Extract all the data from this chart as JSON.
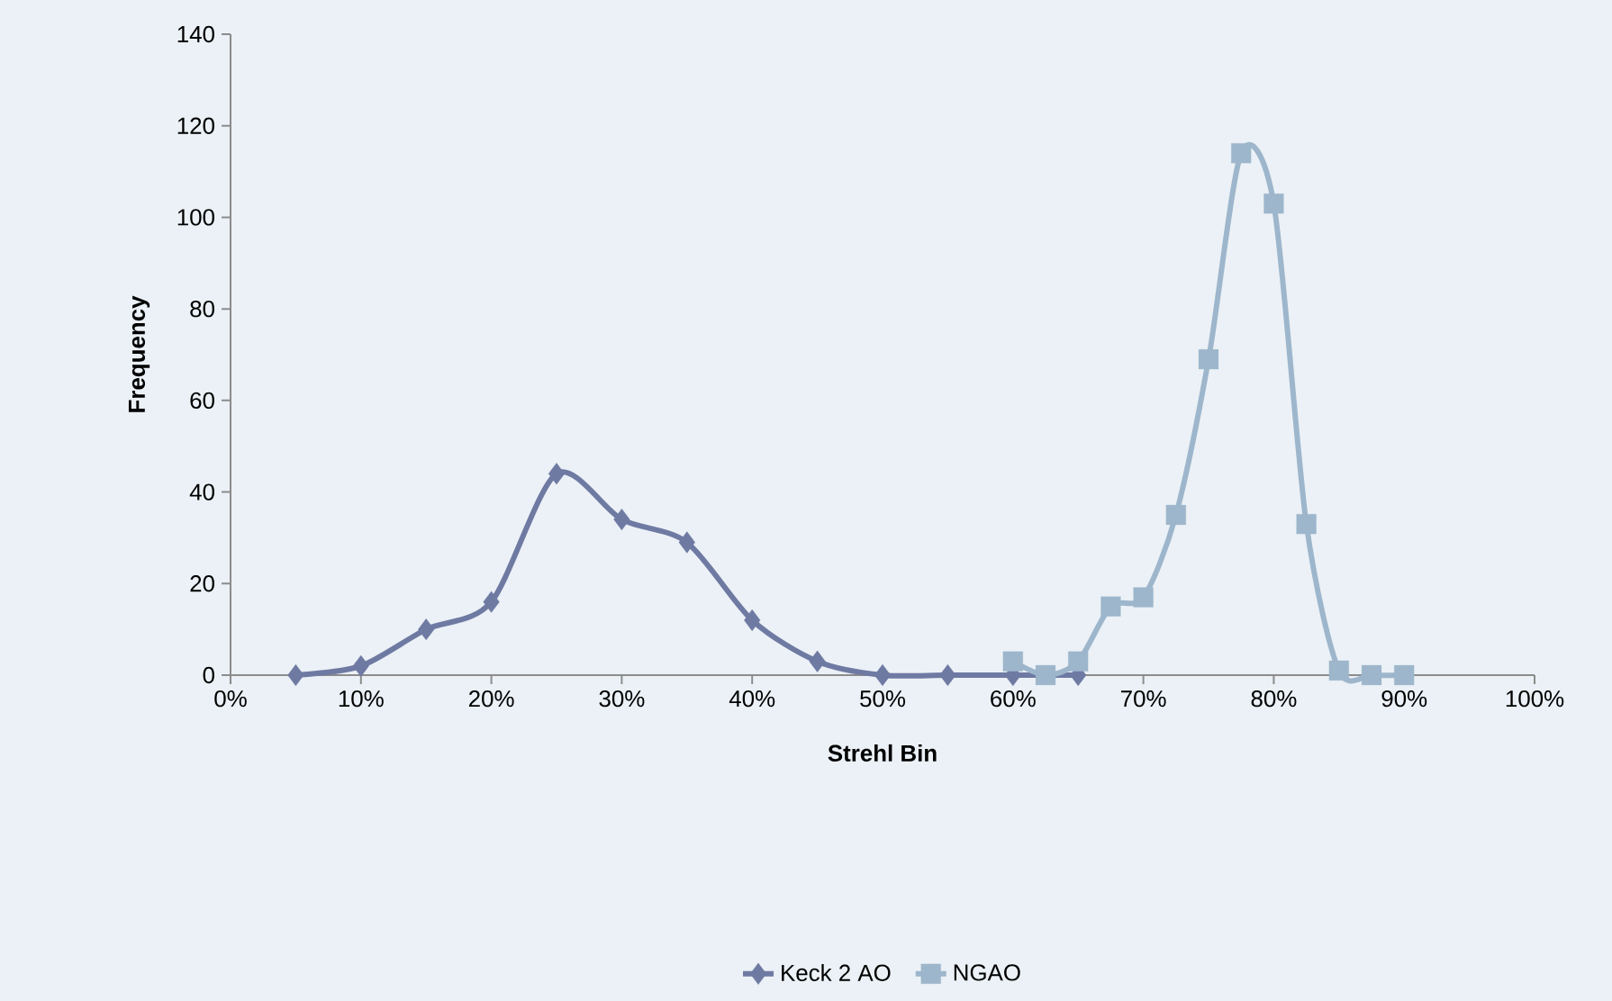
{
  "chart_data": {
    "type": "line",
    "xlabel": "Strehl Bin",
    "ylabel": "Frequency",
    "xlim": [
      0,
      100
    ],
    "xticks": [
      {
        "value": 0,
        "label": "0%"
      },
      {
        "value": 10,
        "label": "10%"
      },
      {
        "value": 20,
        "label": "20%"
      },
      {
        "value": 30,
        "label": "30%"
      },
      {
        "value": 40,
        "label": "40%"
      },
      {
        "value": 50,
        "label": "50%"
      },
      {
        "value": 60,
        "label": "60%"
      },
      {
        "value": 70,
        "label": "70%"
      },
      {
        "value": 80,
        "label": "80%"
      },
      {
        "value": 90,
        "label": "90%"
      },
      {
        "value": 100,
        "label": "100%"
      }
    ],
    "ylim": [
      0,
      140
    ],
    "yticks": [
      0,
      20,
      40,
      60,
      80,
      100,
      120,
      140
    ],
    "grid": false,
    "legend": "bottom",
    "series": [
      {
        "name": "Keck 2 AO",
        "color": "#6f7aa3",
        "marker": "diamond",
        "x": [
          5,
          10,
          15,
          20,
          25,
          30,
          35,
          40,
          45,
          50,
          55,
          60,
          65
        ],
        "values": [
          0,
          2,
          10,
          16,
          44,
          34,
          29,
          12,
          3,
          0,
          0,
          0,
          0
        ]
      },
      {
        "name": "NGAO",
        "color": "#9db6cc",
        "marker": "square",
        "x": [
          60,
          62.5,
          65,
          67.5,
          70,
          72.5,
          75,
          77.5,
          80,
          82.5,
          85,
          87.5,
          90
        ],
        "values": [
          3,
          0,
          3,
          15,
          17,
          35,
          69,
          114,
          103,
          33,
          1,
          0,
          0
        ]
      }
    ]
  }
}
